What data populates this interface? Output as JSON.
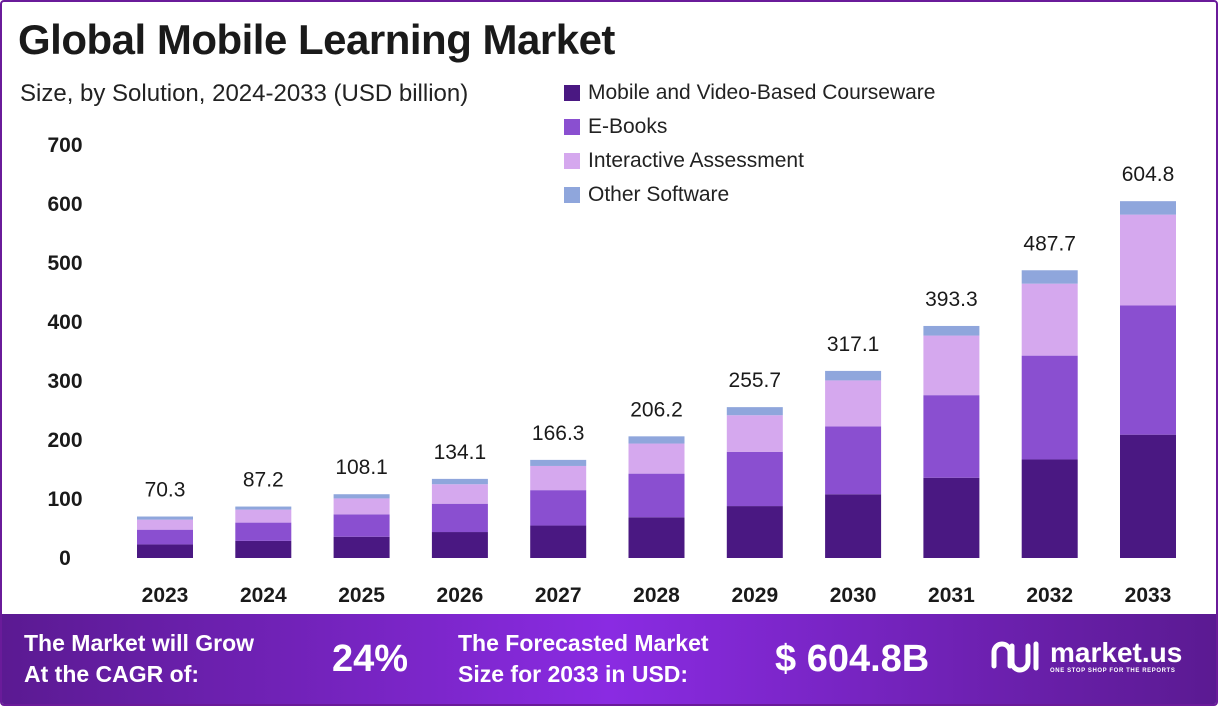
{
  "header": {
    "title": "Global Mobile Learning Market",
    "subtitle": "Size, by Solution, 2024-2033 (USD billion)"
  },
  "chart_data": {
    "type": "bar",
    "stacked": true,
    "categories": [
      "2023",
      "2024",
      "2025",
      "2026",
      "2027",
      "2028",
      "2029",
      "2030",
      "2031",
      "2032",
      "2033"
    ],
    "totals": [
      70.3,
      87.2,
      108.1,
      134.1,
      166.3,
      206.2,
      255.7,
      317.1,
      393.3,
      487.7,
      604.8
    ],
    "total_labels": [
      "70.3",
      "87.2",
      "108.1",
      "134.1",
      "166.3",
      "206.2",
      "255.7",
      "317.1",
      "393.3",
      "487.7",
      "604.8"
    ],
    "series": [
      {
        "name": "Mobile and Video-Based Courseware",
        "color": "#4a1882",
        "values": [
          23,
          29,
          36,
          44,
          55,
          69,
          88,
          108,
          136,
          167,
          209
        ]
      },
      {
        "name": "E-Books",
        "color": "#8a4fd0",
        "values": [
          25,
          31,
          38,
          48,
          60,
          74,
          92,
          115,
          140,
          176,
          219
        ]
      },
      {
        "name": "Interactive Assessment",
        "color": "#d5a8ee",
        "values": [
          17,
          22,
          27,
          33,
          41,
          51,
          62,
          78,
          101,
          122,
          154
        ]
      },
      {
        "name": "Other Software",
        "color": "#8fa6dc",
        "values": [
          5.3,
          5.2,
          7.1,
          9.1,
          10.3,
          12.2,
          13.7,
          16.1,
          16.3,
          22.7,
          22.8
        ]
      }
    ],
    "y_ticks": [
      "0",
      "100",
      "200",
      "300",
      "400",
      "500",
      "600",
      "700"
    ],
    "ylim": [
      0,
      700
    ],
    "legend_position": "top-center",
    "grid": false
  },
  "footer": {
    "cagr_label_line1": "The Market will Grow",
    "cagr_label_line2": "At the CAGR of:",
    "cagr_value": "24%",
    "forecast_label_line1": "The Forecasted Market",
    "forecast_label_line2": "Size for 2033 in USD:",
    "forecast_value": "$ 604.8B",
    "logo_name": "market.us",
    "logo_tagline": "ONE STOP SHOP FOR THE REPORTS"
  }
}
